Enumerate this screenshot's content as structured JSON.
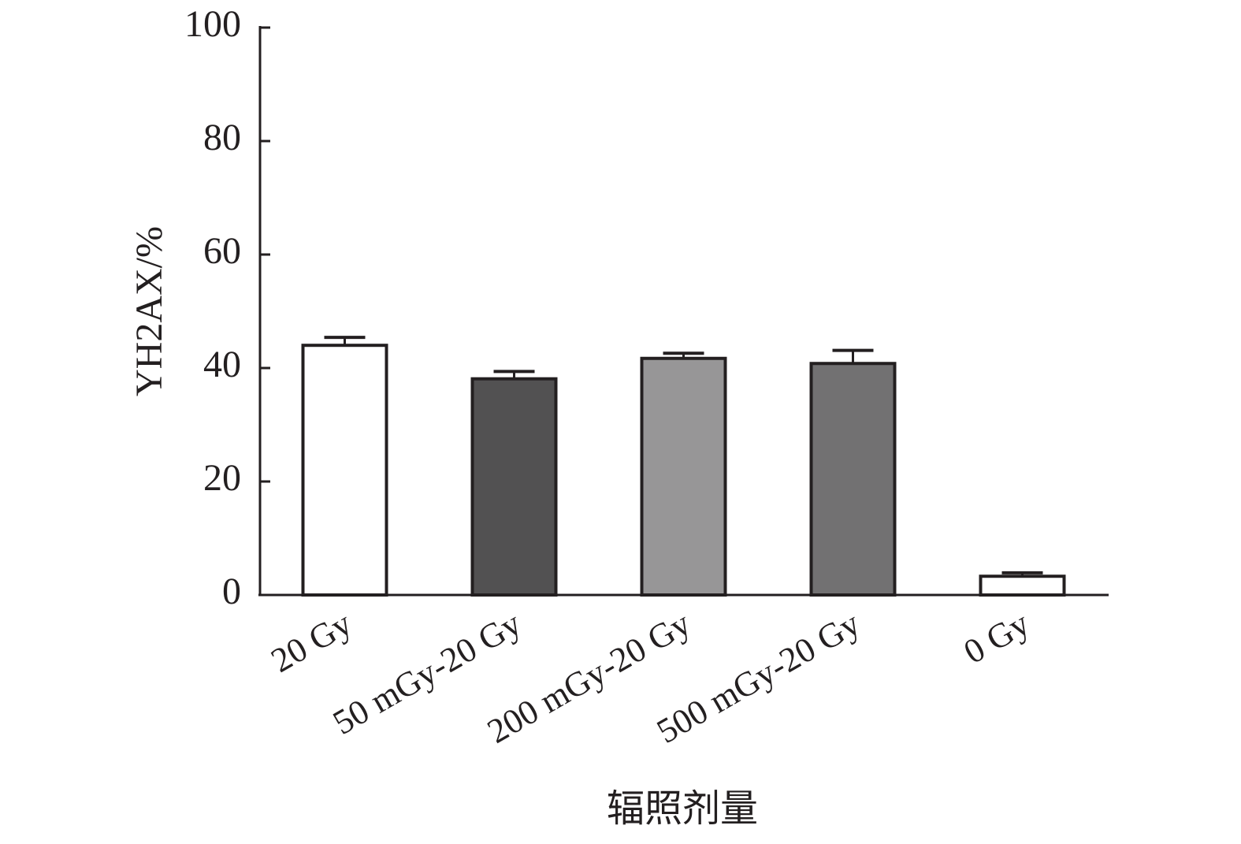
{
  "chart_data": {
    "type": "bar",
    "categories": [
      "20 Gy",
      "50 mGy-20 Gy",
      "200 mGy-20 Gy",
      "500 mGy-20 Gy",
      "0 Gy"
    ],
    "values": [
      44.0,
      38.1,
      41.7,
      40.8,
      3.3
    ],
    "errors": [
      1.4,
      1.3,
      0.9,
      2.3,
      0.6
    ],
    "colors": [
      "#ffffff",
      "#525152",
      "#979697",
      "#727172",
      "#ffffff"
    ],
    "x_label": "辐照剂量",
    "y_label": "YH2AX/%",
    "ylim": [
      0,
      100
    ],
    "yticks": [
      0,
      20,
      40,
      60,
      80,
      100
    ],
    "grid": false
  }
}
